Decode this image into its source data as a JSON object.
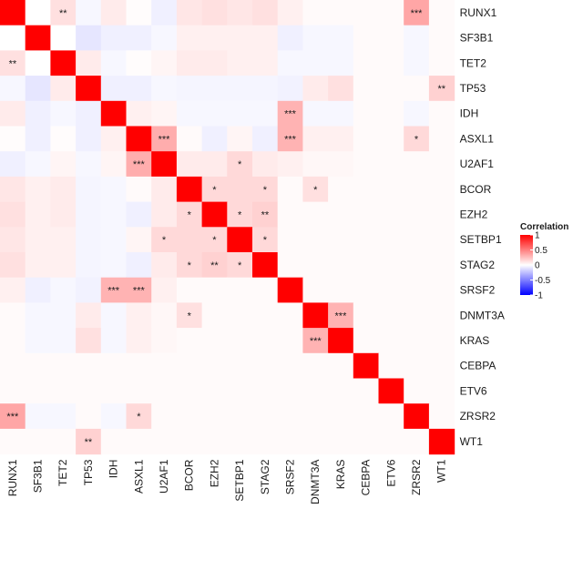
{
  "chart_data": {
    "type": "heatmap",
    "title": "",
    "genes": [
      "RUNX1",
      "SF3B1",
      "TET2",
      "TP53",
      "IDH",
      "ASXL1",
      "U2AF1",
      "BCOR",
      "EZH2",
      "SETBP1",
      "STAG2",
      "SRSF2",
      "DNMT3A",
      "KRAS",
      "CEBPA",
      "ETV6",
      "ZRSR2",
      "WT1"
    ],
    "matrix": [
      [
        1,
        0,
        0.12,
        -0.03,
        0.08,
        0.01,
        -0.06,
        0.1,
        0.12,
        0.1,
        0.12,
        0.06,
        0.02,
        0.02,
        0.02,
        0.02,
        0.35,
        0.02
      ],
      [
        0,
        1,
        0,
        -0.1,
        -0.06,
        -0.06,
        -0.03,
        0.06,
        0.06,
        0.06,
        0.06,
        -0.06,
        -0.03,
        -0.03,
        0.02,
        0.02,
        -0.03,
        0.02
      ],
      [
        0.12,
        0,
        1,
        0.08,
        -0.03,
        0.01,
        0.04,
        0.08,
        0.08,
        0.06,
        0.06,
        -0.03,
        -0.03,
        -0.03,
        0.02,
        0.02,
        -0.03,
        0.02
      ],
      [
        -0.03,
        -0.1,
        0.08,
        1,
        -0.06,
        -0.06,
        -0.03,
        -0.04,
        -0.04,
        -0.04,
        -0.04,
        -0.05,
        0.08,
        0.12,
        0.02,
        0.02,
        0.02,
        0.18
      ],
      [
        0.08,
        -0.06,
        -0.03,
        -0.06,
        1,
        0.06,
        0.04,
        -0.03,
        -0.03,
        -0.03,
        -0.03,
        0.3,
        -0.03,
        -0.03,
        0.02,
        0.02,
        -0.03,
        0.02
      ],
      [
        0.01,
        -0.06,
        0.01,
        -0.06,
        0.06,
        1,
        0.32,
        0.02,
        -0.06,
        0.04,
        -0.06,
        0.3,
        0.06,
        0.06,
        0.02,
        0.02,
        0.15,
        0.02
      ],
      [
        -0.06,
        -0.03,
        0.04,
        -0.03,
        0.04,
        0.32,
        1,
        0.08,
        0.08,
        0.15,
        0.08,
        0.06,
        0.03,
        0.03,
        0.02,
        0.02,
        0.02,
        0.02
      ],
      [
        0.1,
        0.06,
        0.08,
        -0.04,
        -0.03,
        0.02,
        0.08,
        1,
        0.15,
        0.15,
        0.15,
        0.02,
        0.12,
        0.02,
        0.02,
        0.02,
        0.02,
        0.02
      ],
      [
        0.12,
        0.06,
        0.08,
        -0.04,
        -0.03,
        -0.06,
        0.08,
        0.15,
        1,
        0.15,
        0.18,
        0.02,
        0.02,
        0.02,
        0.02,
        0.02,
        0.02,
        0.02
      ],
      [
        0.1,
        0.06,
        0.06,
        -0.04,
        -0.03,
        0.04,
        0.15,
        0.15,
        0.15,
        1,
        0.15,
        0.02,
        0.02,
        0.02,
        0.02,
        0.02,
        0.02,
        0.02
      ],
      [
        0.12,
        0.06,
        0.06,
        -0.04,
        -0.03,
        -0.06,
        0.08,
        0.15,
        0.18,
        0.15,
        1,
        0.02,
        0.02,
        0.02,
        0.02,
        0.02,
        0.02,
        0.02
      ],
      [
        0.06,
        -0.06,
        -0.03,
        -0.05,
        0.3,
        0.3,
        0.06,
        0.02,
        0.02,
        0.02,
        0.02,
        1,
        0.02,
        0.02,
        0.02,
        0.02,
        0.02,
        0.02
      ],
      [
        0.02,
        -0.03,
        -0.03,
        0.08,
        -0.03,
        0.06,
        0.03,
        0.12,
        0.02,
        0.02,
        0.02,
        0.02,
        1,
        0.3,
        0.02,
        0.02,
        0.02,
        0.02
      ],
      [
        0.02,
        -0.03,
        -0.03,
        0.12,
        -0.03,
        0.06,
        0.03,
        0.02,
        0.02,
        0.02,
        0.02,
        0.02,
        0.3,
        1,
        0.02,
        0.02,
        0.02,
        0.02
      ],
      [
        0.02,
        0.02,
        0.02,
        0.02,
        0.02,
        0.02,
        0.02,
        0.02,
        0.02,
        0.02,
        0.02,
        0.02,
        0.02,
        0.02,
        1,
        0.02,
        0.02,
        0.02
      ],
      [
        0.02,
        0.02,
        0.02,
        0.02,
        0.02,
        0.02,
        0.02,
        0.02,
        0.02,
        0.02,
        0.02,
        0.02,
        0.02,
        0.02,
        0.02,
        1,
        0.02,
        0.02
      ],
      [
        0.35,
        -0.03,
        -0.03,
        0.02,
        -0.03,
        0.15,
        0.02,
        0.02,
        0.02,
        0.02,
        0.02,
        0.02,
        0.02,
        0.02,
        0.02,
        0.02,
        1,
        0.02
      ],
      [
        0.02,
        0.02,
        0.02,
        0.18,
        0.02,
        0.02,
        0.02,
        0.02,
        0.02,
        0.02,
        0.02,
        0.02,
        0.02,
        0.02,
        0.02,
        0.02,
        0.02,
        1
      ]
    ],
    "significance": [
      {
        "row": "RUNX1",
        "col": "TET2",
        "label": "**"
      },
      {
        "row": "RUNX1",
        "col": "ZRSR2",
        "label": "***"
      },
      {
        "row": "TET2",
        "col": "RUNX1",
        "label": "**"
      },
      {
        "row": "TP53",
        "col": "WT1",
        "label": "**"
      },
      {
        "row": "IDH",
        "col": "SRSF2",
        "label": "***"
      },
      {
        "row": "ASXL1",
        "col": "U2AF1",
        "label": "***"
      },
      {
        "row": "ASXL1",
        "col": "SRSF2",
        "label": "***"
      },
      {
        "row": "ASXL1",
        "col": "ZRSR2",
        "label": "*"
      },
      {
        "row": "U2AF1",
        "col": "ASXL1",
        "label": "***"
      },
      {
        "row": "U2AF1",
        "col": "SETBP1",
        "label": "*"
      },
      {
        "row": "BCOR",
        "col": "EZH2",
        "label": "*"
      },
      {
        "row": "BCOR",
        "col": "STAG2",
        "label": "*"
      },
      {
        "row": "BCOR",
        "col": "DNMT3A",
        "label": "*"
      },
      {
        "row": "EZH2",
        "col": "BCOR",
        "label": "*"
      },
      {
        "row": "EZH2",
        "col": "SETBP1",
        "label": "*"
      },
      {
        "row": "EZH2",
        "col": "STAG2",
        "label": "**"
      },
      {
        "row": "SETBP1",
        "col": "U2AF1",
        "label": "*"
      },
      {
        "row": "SETBP1",
        "col": "EZH2",
        "label": "*"
      },
      {
        "row": "SETBP1",
        "col": "STAG2",
        "label": "*"
      },
      {
        "row": "STAG2",
        "col": "BCOR",
        "label": "*"
      },
      {
        "row": "STAG2",
        "col": "EZH2",
        "label": "**"
      },
      {
        "row": "STAG2",
        "col": "SETBP1",
        "label": "*"
      },
      {
        "row": "SRSF2",
        "col": "IDH",
        "label": "***"
      },
      {
        "row": "SRSF2",
        "col": "ASXL1",
        "label": "***"
      },
      {
        "row": "DNMT3A",
        "col": "BCOR",
        "label": "*"
      },
      {
        "row": "DNMT3A",
        "col": "KRAS",
        "label": "***"
      },
      {
        "row": "KRAS",
        "col": "DNMT3A",
        "label": "***"
      },
      {
        "row": "ZRSR2",
        "col": "RUNX1",
        "label": "***"
      },
      {
        "row": "ZRSR2",
        "col": "ASXL1",
        "label": "*"
      },
      {
        "row": "WT1",
        "col": "TP53",
        "label": "**"
      }
    ],
    "legend": {
      "title": "Correlation",
      "ticks": [
        {
          "value": 1,
          "label": "1"
        },
        {
          "value": 0.5,
          "label": "0.5"
        },
        {
          "value": 0,
          "label": "0"
        },
        {
          "value": -0.5,
          "label": "-0.5"
        },
        {
          "value": -1,
          "label": "-1"
        }
      ],
      "range": [
        -1,
        1
      ],
      "placement": "right"
    },
    "colors": {
      "low": "#0000ff",
      "mid": "#ffffff",
      "high": "#ff0000"
    }
  }
}
